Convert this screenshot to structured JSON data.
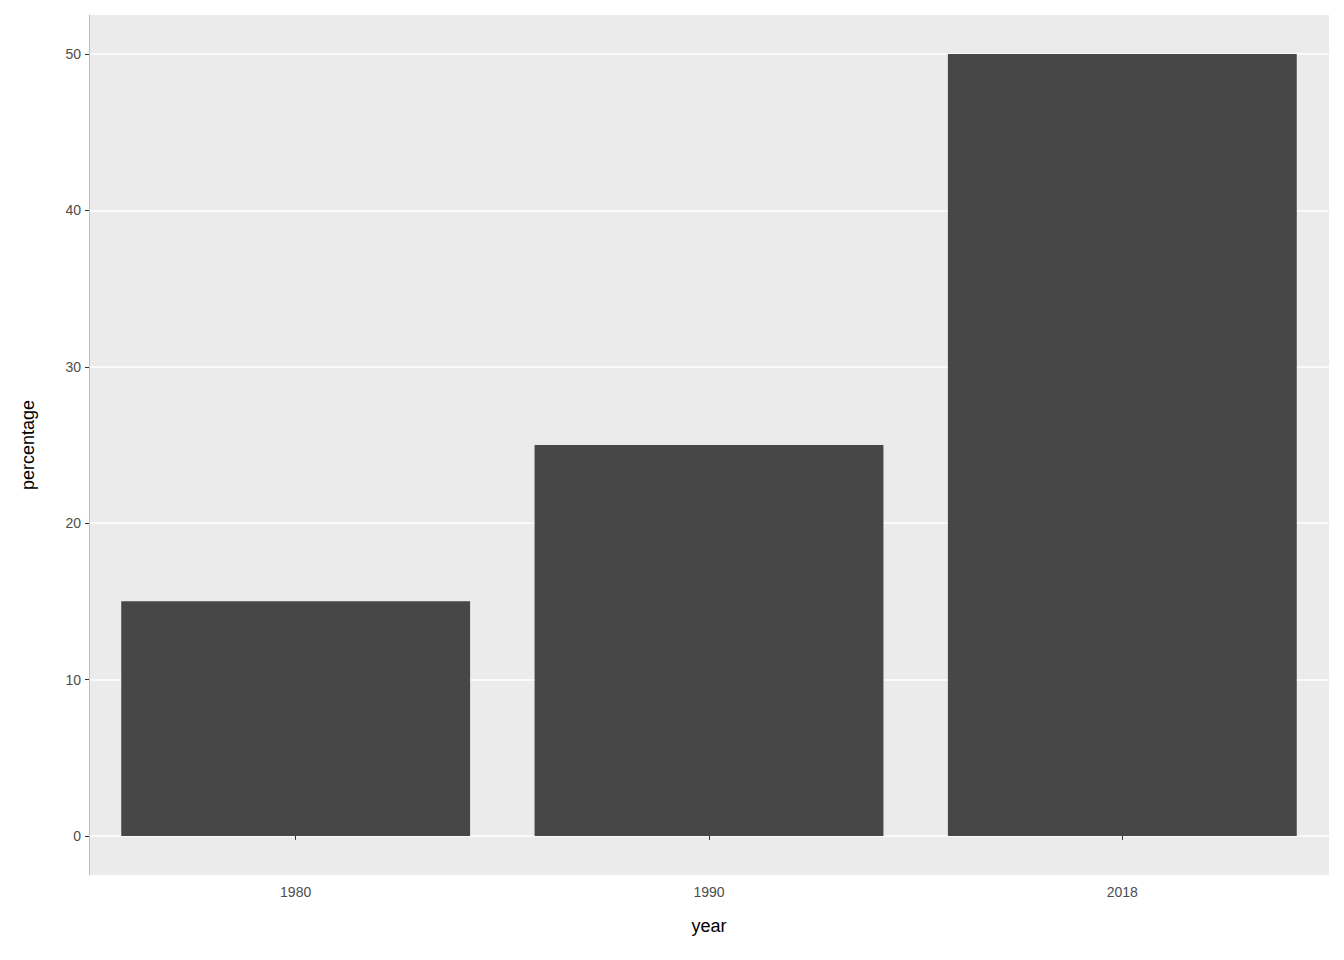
{
  "chart_data": {
    "type": "bar",
    "x_label": "year",
    "y_label": "percentage",
    "categories": [
      "1980",
      "1990",
      "2018"
    ],
    "values": [
      15,
      25,
      50
    ],
    "color": "#474747",
    "ylim": [
      -2.5,
      52.5
    ],
    "yticks": [
      0,
      10,
      20,
      30,
      40,
      50
    ],
    "grid": true
  }
}
